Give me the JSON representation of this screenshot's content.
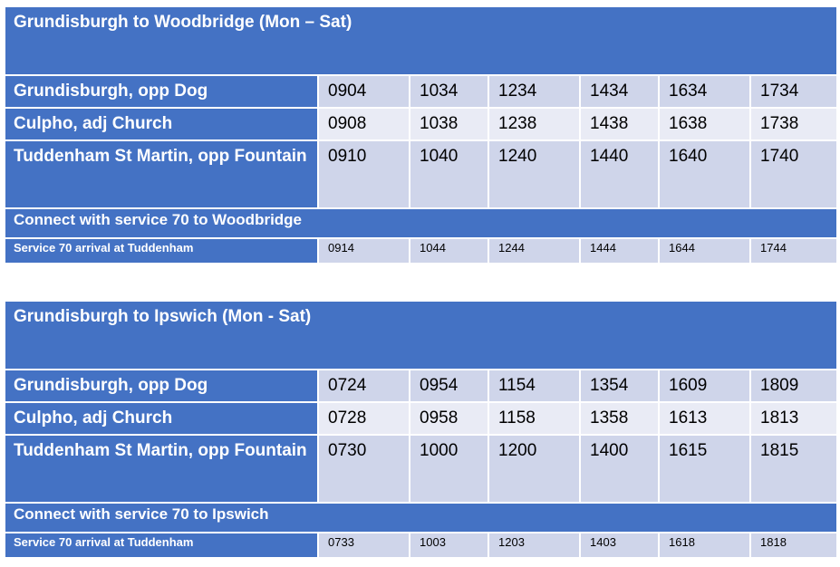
{
  "tables": [
    {
      "title": "Grundisburgh to Woodbridge (Mon – Sat)",
      "stops": [
        {
          "name": "Grundisburgh, opp Dog",
          "times": [
            "0904",
            "1034",
            "1234",
            "1434",
            "1634",
            "1734"
          ]
        },
        {
          "name": "Culpho, adj Church",
          "times": [
            "0908",
            "1038",
            "1238",
            "1438",
            "1638",
            "1738"
          ]
        },
        {
          "name": "Tuddenham St Martin, opp Fountain",
          "times": [
            "0910",
            "1040",
            "1240",
            "1440",
            "1640",
            "1740"
          ]
        }
      ],
      "connect": "Connect with service 70 to Woodbridge",
      "arrival_label": "Service 70 arrival at Tuddenham",
      "arrival_times": [
        "0914",
        "1044",
        "1244",
        "1444",
        "1644",
        "1744"
      ]
    },
    {
      "title": "Grundisburgh to Ipswich (Mon - Sat)",
      "stops": [
        {
          "name": "Grundisburgh, opp Dog",
          "times": [
            "0724",
            "0954",
            "1154",
            "1354",
            "1609",
            "1809"
          ]
        },
        {
          "name": "Culpho, adj Church",
          "times": [
            "0728",
            "0958",
            "1158",
            "1358",
            "1613",
            "1813"
          ]
        },
        {
          "name": "Tuddenham St Martin, opp Fountain",
          "times": [
            "0730",
            "1000",
            "1200",
            "1400",
            "1615",
            "1815"
          ]
        }
      ],
      "connect": "Connect with service 70 to Ipswich",
      "arrival_label": "Service 70 arrival at Tuddenham",
      "arrival_times": [
        "0733",
        "1003",
        "1203",
        "1403",
        "1618",
        "1818"
      ]
    }
  ],
  "colors": {
    "header": "#4472c4",
    "band_dark": "#cfd5ea",
    "band_light": "#e9ebf5"
  }
}
